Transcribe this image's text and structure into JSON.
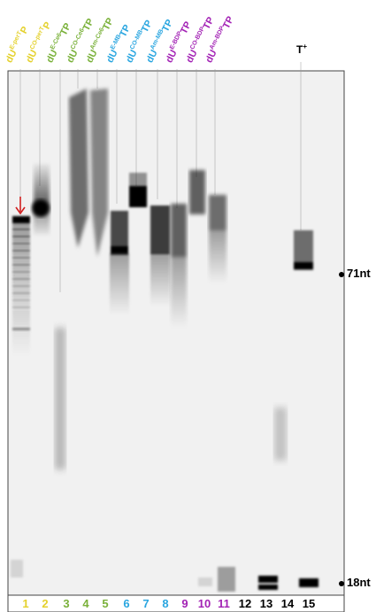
{
  "lanes": [
    {
      "num": "1",
      "label": "dU",
      "sup": "E-perT",
      "tail": "P",
      "color": "#e4d12d"
    },
    {
      "num": "2",
      "label": "dU",
      "sup": "CO-perT",
      "tail": "P",
      "color": "#e4d12d"
    },
    {
      "num": "3",
      "label": "dU",
      "sup": "E-Ce6",
      "tail": "TP",
      "color": "#7ab13a"
    },
    {
      "num": "4",
      "label": "dU",
      "sup": "CO-Ce6",
      "tail": "TP",
      "color": "#7ab13a"
    },
    {
      "num": "5",
      "label": "dU",
      "sup": "Am-Ce6",
      "tail": "TP",
      "color": "#7ab13a"
    },
    {
      "num": "6",
      "label": "dU",
      "sup": "E-MB",
      "tail": "TP",
      "color": "#2aa6e0"
    },
    {
      "num": "7",
      "label": "dU",
      "sup": "CO-MB",
      "tail": "TP",
      "color": "#2aa6e0"
    },
    {
      "num": "8",
      "label": "dU",
      "sup": "Am-MB",
      "tail": "TP",
      "color": "#2aa6e0"
    },
    {
      "num": "9",
      "label": "dU",
      "sup": "E-BDP",
      "tail": "TP",
      "color": "#a323b5"
    },
    {
      "num": "10",
      "label": "dU",
      "sup": "CO-BDP",
      "tail": "TP",
      "color": "#a323b5"
    },
    {
      "num": "11",
      "label": "dU",
      "sup": "Am-BDP",
      "tail": "TP",
      "color": "#a323b5"
    },
    {
      "num": "12",
      "label": "",
      "sup": "",
      "tail": "",
      "color": "#000000"
    },
    {
      "num": "13",
      "label": "",
      "sup": "",
      "tail": "",
      "color": "#000000"
    },
    {
      "num": "14",
      "label": "T",
      "sup": "+",
      "tail": "",
      "color": "#000000"
    },
    {
      "num": "15",
      "label": "",
      "sup": "",
      "tail": "",
      "color": "#000000"
    }
  ],
  "markers": {
    "upper": "71nt",
    "lower": "18nt"
  },
  "arrow_icon": "down-arrow-icon",
  "arrow_color": "#d11f1f"
}
